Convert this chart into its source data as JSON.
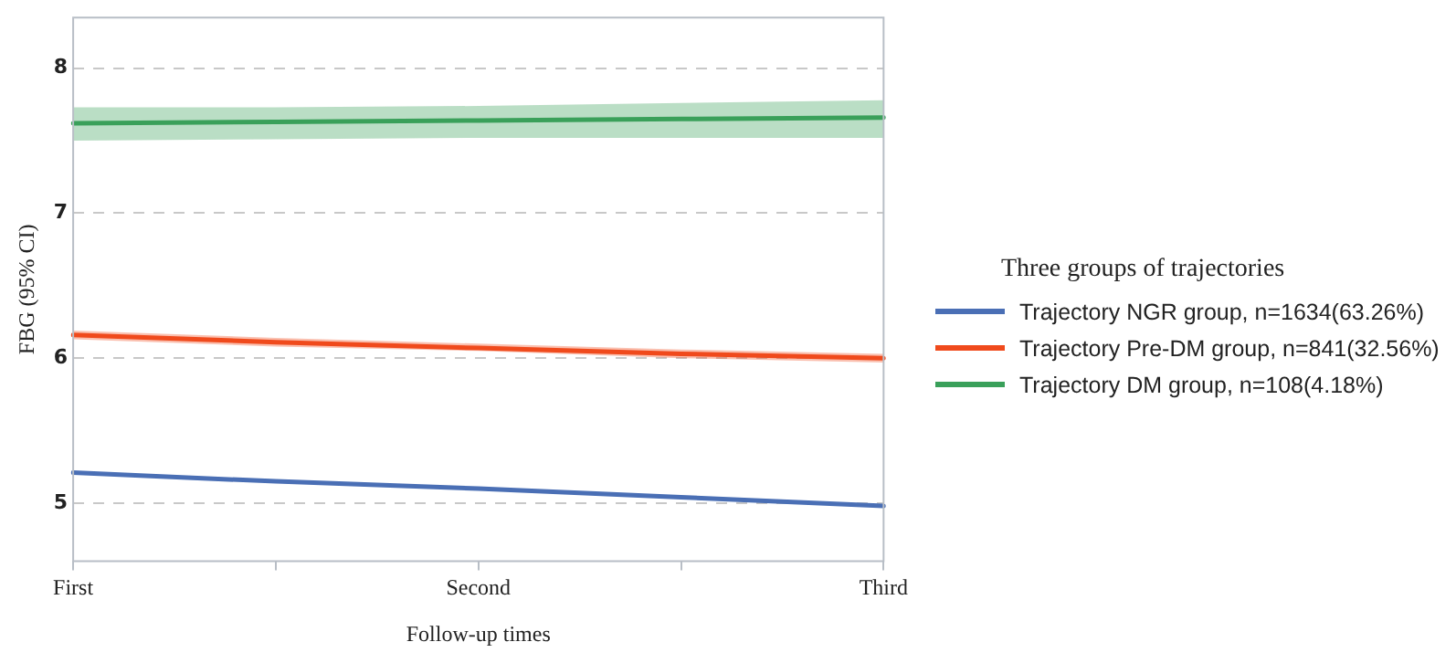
{
  "chart_data": {
    "type": "line",
    "xlabel": "Follow-up times",
    "ylabel": "FBG (95% CI)",
    "legend_title": "Three groups of trajectories",
    "legend": "right",
    "grid": "y",
    "marker": "none",
    "line_style": "solid",
    "categories": [
      "First",
      null,
      "Second",
      null,
      "Third"
    ],
    "ylim": [
      4.6,
      8.35
    ],
    "yticks": [
      5,
      6,
      7,
      8
    ],
    "series": [
      {
        "name": "Trajectory NGR group, n=1634(63.26%)",
        "color": "#4a6fb5",
        "values": [
          5.21,
          5.15,
          5.1,
          5.04,
          4.98
        ]
      },
      {
        "name": "Trajectory Pre-DM group, n=841(32.56%)",
        "color": "#f04a1c",
        "values": [
          6.16,
          6.11,
          6.07,
          6.03,
          6.0
        ],
        "lower": [
          6.13,
          6.08,
          6.05,
          6.0,
          5.97
        ],
        "upper": [
          6.19,
          6.14,
          6.1,
          6.06,
          6.03
        ]
      },
      {
        "name": "Trajectory DM group, n=108(4.18%)",
        "color": "#3aa05a",
        "values": [
          7.62,
          7.63,
          7.64,
          7.65,
          7.66
        ],
        "lower": [
          7.5,
          7.51,
          7.52,
          7.52,
          7.52
        ],
        "upper": [
          7.73,
          7.73,
          7.74,
          7.76,
          7.78
        ]
      }
    ]
  }
}
